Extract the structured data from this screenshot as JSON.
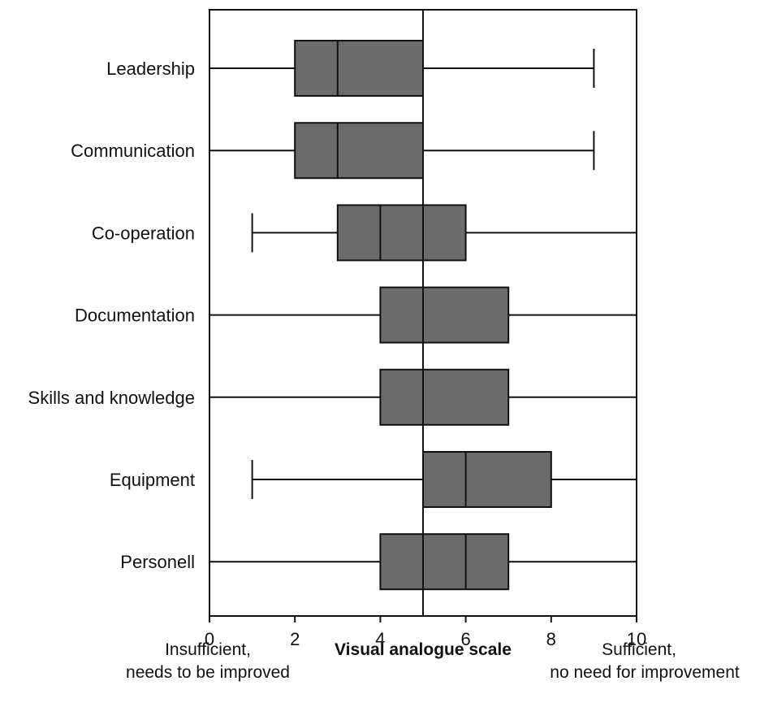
{
  "chart_data": {
    "type": "boxplot",
    "orientation": "horizontal",
    "xlabel": "Visual analogue scale",
    "xlim": [
      0,
      10
    ],
    "xticks": [
      0,
      2,
      4,
      6,
      8,
      10
    ],
    "reference_line": 5,
    "left_note": [
      "Insufficient,",
      "needs to be improved"
    ],
    "right_note": [
      "Sufficient,",
      "no need for improvement"
    ],
    "box_color": "#6b6b6b",
    "categories": [
      "Leadership",
      "Communication",
      "Co-operation",
      "Documentation",
      "Skills and knowledge",
      "Equipment",
      "Personell"
    ],
    "boxes": [
      {
        "label": "Leadership",
        "min": 0,
        "q1": 2,
        "median": 3,
        "q3": 5,
        "max": 9
      },
      {
        "label": "Communication",
        "min": 0,
        "q1": 2,
        "median": 3,
        "q3": 5,
        "max": 9
      },
      {
        "label": "Co-operation",
        "min": 1,
        "q1": 3,
        "median": 4,
        "q3": 6,
        "max": 10
      },
      {
        "label": "Documentation",
        "min": 0,
        "q1": 4,
        "median": 5,
        "q3": 7,
        "max": 10
      },
      {
        "label": "Skills and knowledge",
        "min": 0,
        "q1": 4,
        "median": 5,
        "q3": 7,
        "max": 10
      },
      {
        "label": "Equipment",
        "min": 1,
        "q1": 5,
        "median": 6,
        "q3": 8,
        "max": 10
      },
      {
        "label": "Personell",
        "min": 0,
        "q1": 4,
        "median": 6,
        "q3": 7,
        "max": 10
      }
    ]
  }
}
